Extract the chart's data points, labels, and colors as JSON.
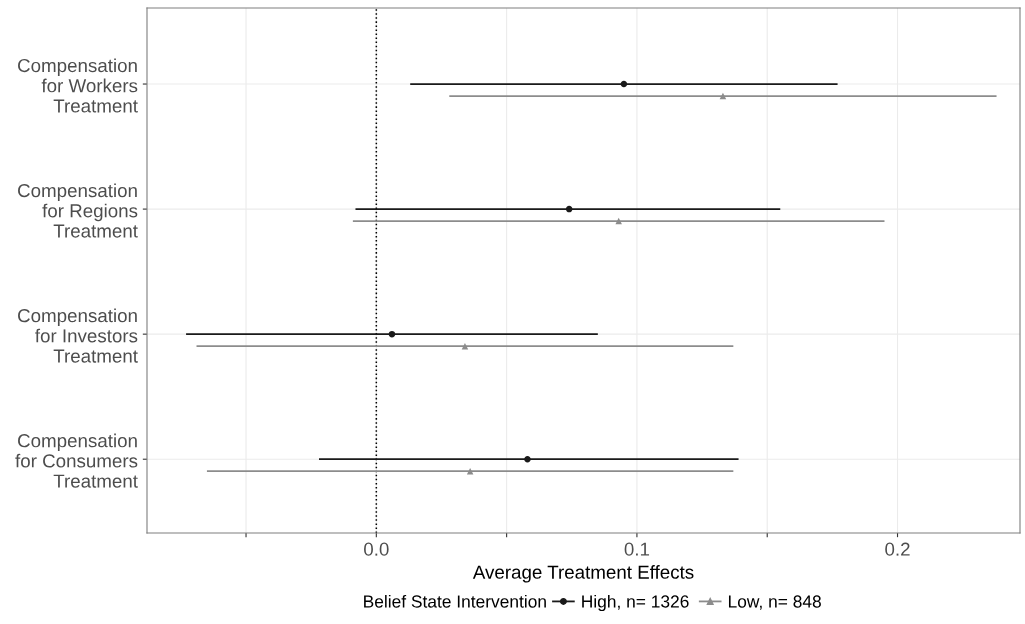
{
  "chart_data": {
    "type": "scatter",
    "orientation": "horizontal",
    "xlabel": "Average Treatment Effects",
    "legend_title": "Belief State Intervention",
    "categories": [
      "Compensation\nfor Workers\nTreatment",
      "Compensation\nfor Regions\nTreatment",
      "Compensation\nfor Investors\nTreatment",
      "Compensation\nfor Consumers\nTreatment"
    ],
    "series": [
      {
        "name": "High, n= 1326",
        "color": "#1a1a1a",
        "marker": "circle",
        "values": [
          0.095,
          0.074,
          0.006,
          0.058
        ],
        "errors": [
          [
            0.013,
            0.177
          ],
          [
            -0.008,
            0.155
          ],
          [
            -0.073,
            0.085
          ],
          [
            -0.022,
            0.139
          ]
        ]
      },
      {
        "name": "Low, n= 848",
        "color": "#8c8c8c",
        "marker": "triangle",
        "values": [
          0.133,
          0.093,
          0.034,
          0.036
        ],
        "errors": [
          [
            0.028,
            0.238
          ],
          [
            -0.009,
            0.195
          ],
          [
            -0.069,
            0.137
          ],
          [
            -0.065,
            0.137
          ]
        ]
      }
    ],
    "xlim": [
      -0.088,
      0.247
    ],
    "xticks": [
      {
        "value": -0.05,
        "label": null
      },
      {
        "value": 0,
        "label": "0.0"
      },
      {
        "value": 0.05,
        "label": null
      },
      {
        "value": 0.1,
        "label": "0.1"
      },
      {
        "value": 0.15,
        "label": null
      },
      {
        "value": 0.2,
        "label": "0.2"
      }
    ],
    "ref_lines": [
      {
        "axis": "x",
        "value": 0,
        "label": null,
        "color": "#000000",
        "line_style": "dotted"
      }
    ],
    "grid": true,
    "legend": "bottom"
  }
}
